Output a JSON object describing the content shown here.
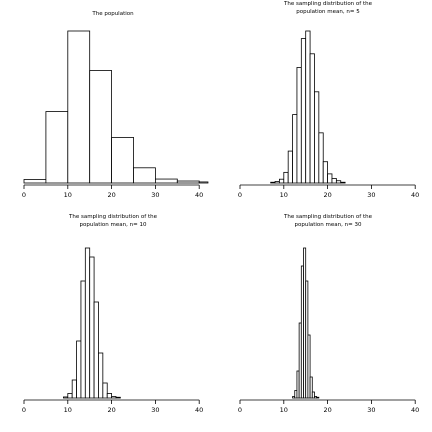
{
  "chart_data": [
    {
      "type": "histogram",
      "title": "The population",
      "title_lines": [
        "The population"
      ],
      "xlabel": "",
      "ylabel": "",
      "xlim": [
        0,
        42
      ],
      "ylim": [
        0,
        100
      ],
      "x_ticks": [
        0,
        10,
        20,
        30,
        40
      ],
      "bin_edges": [
        0,
        5,
        10,
        15,
        20,
        25,
        30,
        35,
        40,
        42
      ],
      "values": [
        2.3,
        47,
        100,
        74,
        30,
        10,
        2.6,
        1.3,
        0.7
      ]
    },
    {
      "type": "histogram",
      "title": "The sampling distribution of the population mean, n=5",
      "title_lines": [
        "The sampling distribution of the",
        "population mean, n= 5"
      ],
      "xlabel": "",
      "ylabel": "",
      "xlim": [
        0,
        42
      ],
      "ylim": [
        0,
        100
      ],
      "x_ticks": [
        0,
        10,
        20,
        30,
        40
      ],
      "bin_edges": [
        7,
        8,
        9,
        10,
        11,
        12,
        13,
        14,
        15,
        16,
        17,
        18,
        19,
        20,
        21,
        22,
        23,
        24
      ],
      "values": [
        0.5,
        1,
        2.5,
        7,
        21,
        45,
        76,
        95,
        100,
        85,
        60,
        33,
        14,
        6,
        3,
        1.5,
        0.5
      ]
    },
    {
      "type": "histogram",
      "title": "The sampling distribution of the population mean, n=10",
      "title_lines": [
        "The sampling distribution of the",
        "population mean, n= 10"
      ],
      "xlabel": "",
      "ylabel": "",
      "xlim": [
        0,
        42
      ],
      "ylim": [
        0,
        100
      ],
      "x_ticks": [
        0,
        10,
        20,
        30,
        40
      ],
      "bin_edges": [
        9,
        10,
        11,
        12,
        13,
        14,
        15,
        16,
        17,
        18,
        19,
        20,
        21,
        22
      ],
      "values": [
        0.7,
        3,
        12,
        38,
        78,
        100,
        94,
        64,
        30,
        10,
        3,
        1,
        0.5
      ]
    },
    {
      "type": "histogram",
      "title": "The sampling distribution of the population mean, n=30",
      "title_lines": [
        "The sampling distribution of the",
        "population mean, n= 30"
      ],
      "xlabel": "",
      "ylabel": "",
      "xlim": [
        0,
        42
      ],
      "ylim": [
        0,
        100
      ],
      "x_ticks": [
        0,
        10,
        20,
        30,
        40
      ],
      "bin_edges": [
        12,
        12.5,
        13,
        13.5,
        14,
        14.5,
        15,
        15.5,
        16,
        16.5,
        17,
        17.5,
        18
      ],
      "values": [
        1,
        5,
        18,
        50,
        88,
        100,
        78,
        42,
        14,
        4,
        1,
        0.5
      ]
    }
  ]
}
